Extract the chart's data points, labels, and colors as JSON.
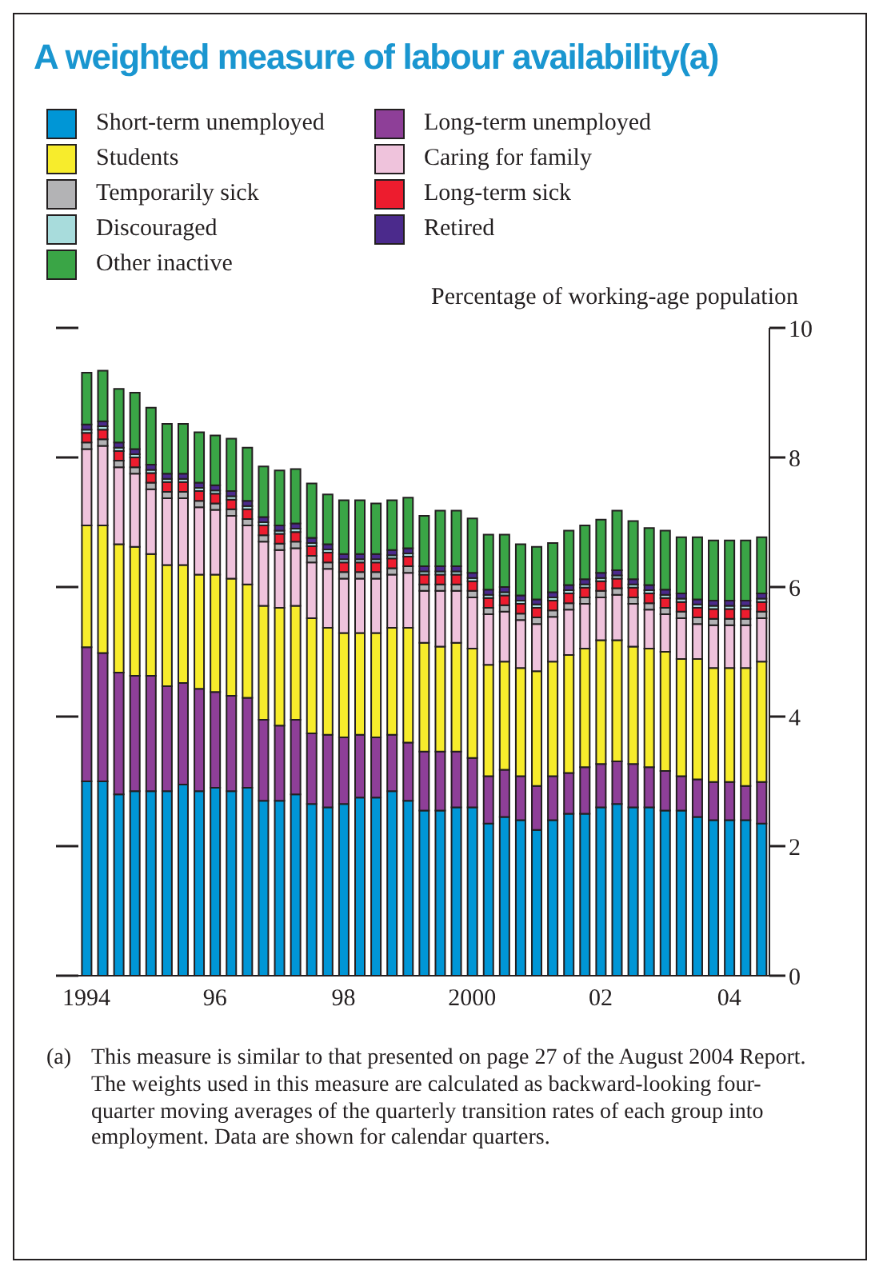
{
  "chart_data": {
    "type": "bar",
    "stacked": true,
    "title": "A weighted measure of labour availability(a)",
    "ylabel": "Percentage of working-age population",
    "legend": "top left",
    "grid": false,
    "categories": [
      "1994",
      null,
      null,
      null,
      null,
      null,
      null,
      null,
      "96",
      null,
      null,
      null,
      null,
      null,
      null,
      null,
      "98",
      null,
      null,
      null,
      null,
      null,
      null,
      null,
      "2000",
      null,
      null,
      null,
      null,
      null,
      null,
      null,
      "02",
      null,
      null,
      null,
      null,
      null,
      null,
      null,
      "04",
      null,
      null
    ],
    "ylim": [
      0,
      10
    ],
    "yticks": [
      0,
      2,
      4,
      6,
      8,
      10
    ],
    "series": [
      {
        "name": "Short-term unemployed",
        "color": "#0096d6",
        "values": [
          3.0,
          3.0,
          2.8,
          2.85,
          2.85,
          2.85,
          2.95,
          2.85,
          2.9,
          2.85,
          2.9,
          2.7,
          2.7,
          2.8,
          2.65,
          2.6,
          2.65,
          2.75,
          2.75,
          2.85,
          2.7,
          2.55,
          2.55,
          2.6,
          2.6,
          2.35,
          2.45,
          2.4,
          2.25,
          2.4,
          2.5,
          2.5,
          2.6,
          2.65,
          2.6,
          2.6,
          2.55,
          2.55,
          2.45,
          2.4,
          2.4,
          2.4,
          2.35
        ]
      },
      {
        "name": "Long-term unemployed",
        "color": "#8e3f98",
        "values": [
          2.07,
          1.98,
          1.88,
          1.78,
          1.78,
          1.62,
          1.57,
          1.58,
          1.48,
          1.47,
          1.39,
          1.25,
          1.16,
          1.15,
          1.09,
          1.12,
          1.03,
          0.97,
          0.93,
          0.87,
          0.9,
          0.91,
          0.91,
          0.86,
          0.76,
          0.73,
          0.73,
          0.68,
          0.68,
          0.68,
          0.63,
          0.72,
          0.67,
          0.66,
          0.67,
          0.62,
          0.61,
          0.53,
          0.58,
          0.59,
          0.59,
          0.53,
          0.64
        ]
      },
      {
        "name": "Students",
        "color": "#f7ec2c",
        "values": [
          1.88,
          1.97,
          1.98,
          1.99,
          1.88,
          1.87,
          1.82,
          1.76,
          1.81,
          1.81,
          1.75,
          1.76,
          1.82,
          1.76,
          1.78,
          1.65,
          1.61,
          1.57,
          1.61,
          1.65,
          1.77,
          1.68,
          1.62,
          1.68,
          1.69,
          1.72,
          1.67,
          1.67,
          1.77,
          1.77,
          1.82,
          1.83,
          1.91,
          1.87,
          1.81,
          1.83,
          1.84,
          1.81,
          1.86,
          1.76,
          1.76,
          1.82,
          1.86
        ]
      },
      {
        "name": "Caring for family",
        "color": "#efc3dc",
        "values": [
          1.18,
          1.23,
          1.19,
          1.13,
          1.0,
          1.03,
          1.03,
          1.04,
          1.0,
          0.97,
          0.91,
          0.99,
          0.89,
          0.89,
          0.86,
          0.91,
          0.84,
          0.84,
          0.84,
          0.82,
          0.85,
          0.8,
          0.86,
          0.8,
          0.79,
          0.78,
          0.77,
          0.74,
          0.73,
          0.69,
          0.7,
          0.69,
          0.66,
          0.7,
          0.66,
          0.6,
          0.58,
          0.63,
          0.54,
          0.66,
          0.66,
          0.66,
          0.67
        ]
      },
      {
        "name": "Temporarily sick",
        "color": "#b3b3b5",
        "values": [
          0.1,
          0.1,
          0.1,
          0.1,
          0.1,
          0.1,
          0.1,
          0.1,
          0.1,
          0.1,
          0.1,
          0.1,
          0.1,
          0.1,
          0.1,
          0.1,
          0.1,
          0.1,
          0.1,
          0.1,
          0.1,
          0.1,
          0.1,
          0.1,
          0.1,
          0.1,
          0.1,
          0.1,
          0.1,
          0.1,
          0.1,
          0.1,
          0.1,
          0.1,
          0.1,
          0.1,
          0.1,
          0.1,
          0.1,
          0.1,
          0.1,
          0.1,
          0.1
        ]
      },
      {
        "name": "Long-term sick",
        "color": "#ed1c2e",
        "values": [
          0.15,
          0.15,
          0.15,
          0.15,
          0.15,
          0.15,
          0.15,
          0.15,
          0.15,
          0.15,
          0.15,
          0.15,
          0.15,
          0.15,
          0.15,
          0.15,
          0.15,
          0.15,
          0.15,
          0.15,
          0.15,
          0.15,
          0.15,
          0.15,
          0.15,
          0.15,
          0.15,
          0.15,
          0.15,
          0.15,
          0.15,
          0.15,
          0.15,
          0.15,
          0.15,
          0.15,
          0.15,
          0.15,
          0.15,
          0.15,
          0.15,
          0.15,
          0.15
        ]
      },
      {
        "name": "Discouraged",
        "color": "#a8dcdc",
        "values": [
          0.05,
          0.05,
          0.05,
          0.05,
          0.05,
          0.05,
          0.05,
          0.05,
          0.05,
          0.05,
          0.05,
          0.05,
          0.05,
          0.05,
          0.05,
          0.05,
          0.05,
          0.05,
          0.05,
          0.05,
          0.05,
          0.05,
          0.05,
          0.05,
          0.05,
          0.05,
          0.05,
          0.05,
          0.05,
          0.05,
          0.05,
          0.05,
          0.05,
          0.05,
          0.05,
          0.05,
          0.05,
          0.05,
          0.05,
          0.05,
          0.05,
          0.05,
          0.05
        ]
      },
      {
        "name": "Retired",
        "color": "#4b2a8c",
        "values": [
          0.08,
          0.08,
          0.08,
          0.08,
          0.08,
          0.08,
          0.08,
          0.08,
          0.08,
          0.08,
          0.08,
          0.08,
          0.08,
          0.08,
          0.08,
          0.08,
          0.08,
          0.08,
          0.08,
          0.08,
          0.08,
          0.08,
          0.08,
          0.08,
          0.08,
          0.08,
          0.08,
          0.08,
          0.08,
          0.08,
          0.08,
          0.08,
          0.08,
          0.08,
          0.08,
          0.08,
          0.08,
          0.08,
          0.08,
          0.08,
          0.08,
          0.08,
          0.08
        ]
      },
      {
        "name": "Other inactive",
        "color": "#3aa546",
        "values": [
          0.8,
          0.78,
          0.83,
          0.87,
          0.88,
          0.77,
          0.77,
          0.78,
          0.77,
          0.81,
          0.82,
          0.78,
          0.85,
          0.84,
          0.84,
          0.77,
          0.83,
          0.83,
          0.78,
          0.77,
          0.78,
          0.78,
          0.86,
          0.86,
          0.84,
          0.85,
          0.81,
          0.79,
          0.81,
          0.76,
          0.84,
          0.83,
          0.82,
          0.92,
          0.9,
          0.88,
          0.91,
          0.87,
          0.96,
          0.93,
          0.93,
          0.93,
          0.87
        ]
      }
    ],
    "annotations": [
      "(a) This measure is similar to that presented on page 27 of the August 2004 Report. The weights used in this measure are calculated as backward-looking four-quarter moving averages of the quarterly transition rates of each group into employment. Data are shown for calendar quarters."
    ]
  }
}
